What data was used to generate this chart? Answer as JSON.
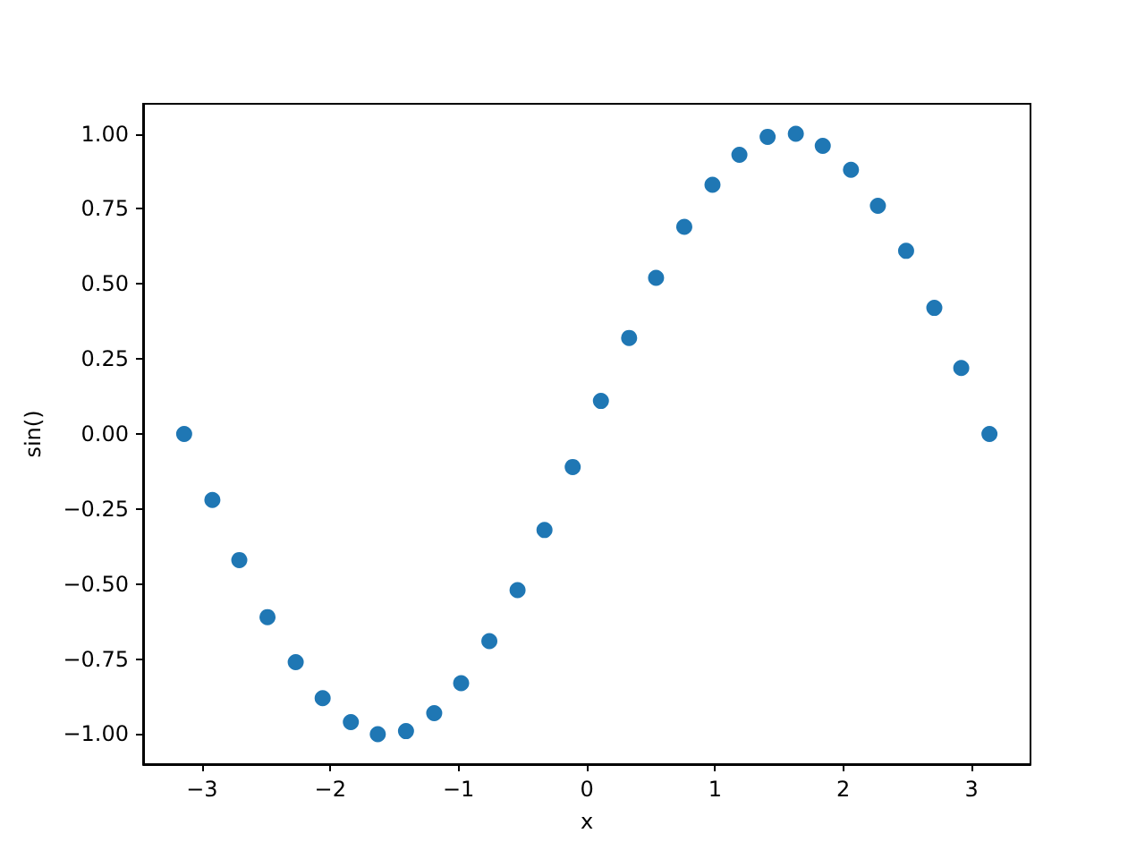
{
  "chart_data": {
    "type": "scatter",
    "xlabel": "x",
    "ylabel": "sin()",
    "color": "#1f77b4",
    "marker": "circle",
    "x": [
      -3.14,
      -2.92,
      -2.71,
      -2.49,
      -2.27,
      -2.06,
      -1.84,
      -1.63,
      -1.41,
      -1.19,
      -0.98,
      -0.76,
      -0.54,
      -0.33,
      -0.11,
      0.11,
      0.33,
      0.54,
      0.76,
      0.98,
      1.19,
      1.41,
      1.63,
      1.84,
      2.06,
      2.27,
      2.49,
      2.71,
      2.92,
      3.14
    ],
    "values": [
      0,
      -0.22,
      -0.42,
      -0.61,
      -0.76,
      -0.88,
      -0.96,
      -1.0,
      -0.99,
      -0.93,
      -0.83,
      -0.69,
      -0.52,
      -0.32,
      -0.11,
      0.11,
      0.32,
      0.52,
      0.69,
      0.83,
      0.93,
      0.99,
      1.0,
      0.96,
      0.88,
      0.76,
      0.61,
      0.42,
      0.22,
      0
    ],
    "xlim": [
      -3.46,
      3.46
    ],
    "ylim": [
      -1.1,
      1.1
    ],
    "xticks": [
      {
        "value": -3,
        "label": "−3"
      },
      {
        "value": -2,
        "label": "−2"
      },
      {
        "value": -1,
        "label": "−1"
      },
      0,
      1,
      2,
      3
    ],
    "yticks": [
      {
        "value": -1,
        "label": "−1.00"
      },
      {
        "value": -0.75,
        "label": "−0.75"
      },
      {
        "value": -0.5,
        "label": "−0.50"
      },
      {
        "value": -0.25,
        "label": "−0.25"
      },
      {
        "value": 0,
        "label": "0.00"
      },
      {
        "value": 0.25,
        "label": "0.25"
      },
      {
        "value": 0.5,
        "label": "0.50"
      },
      {
        "value": 0.75,
        "label": "0.75"
      },
      {
        "value": 1,
        "label": "1.00"
      }
    ]
  }
}
